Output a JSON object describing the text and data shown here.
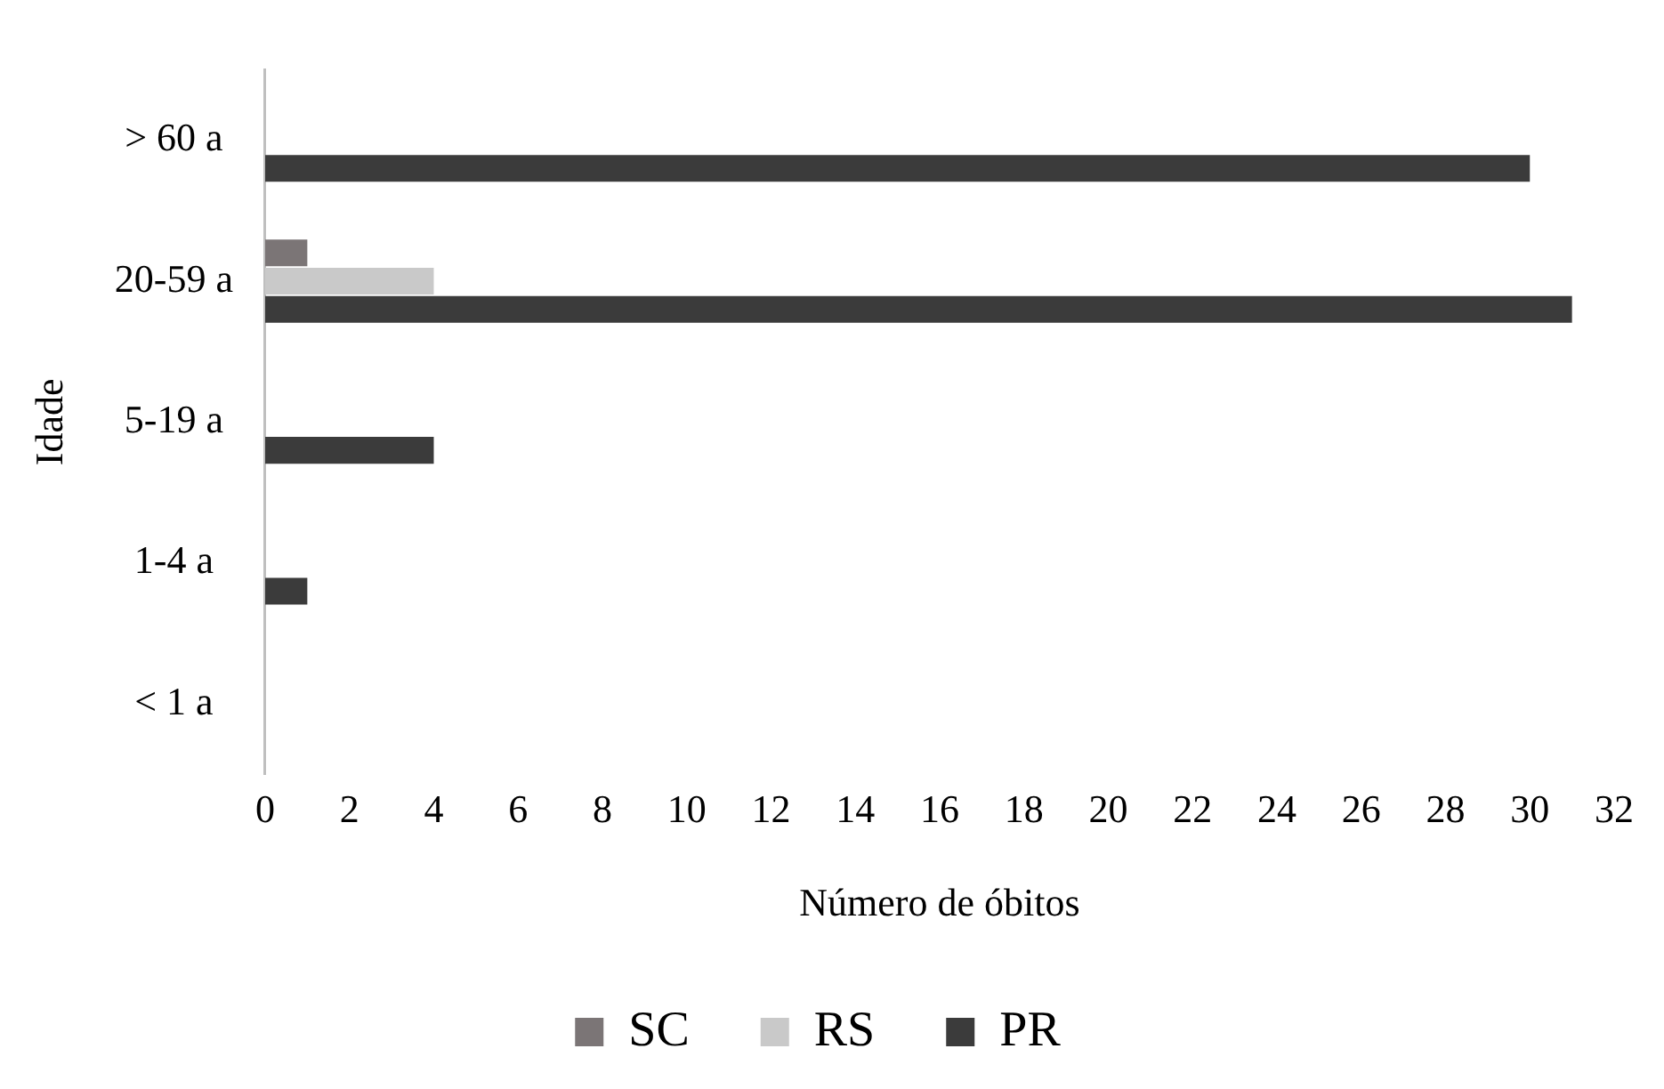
{
  "chart_data": {
    "type": "bar",
    "orientation": "horizontal",
    "xlabel": "Número de óbitos",
    "ylabel": "Idade",
    "categories": [
      "> 60 a",
      "20-59 a",
      "5-19 a",
      "1-4 a",
      "< 1 a"
    ],
    "series": [
      {
        "name": "SC",
        "color": "#7b7576",
        "values": [
          null,
          1,
          null,
          null,
          null
        ]
      },
      {
        "name": "RS",
        "color": "#c9c9c9",
        "values": [
          null,
          4,
          null,
          null,
          null
        ]
      },
      {
        "name": "PR",
        "color": "#3b3b3b",
        "values": [
          30,
          31,
          4,
          1,
          null
        ]
      }
    ],
    "xlim": [
      0,
      32
    ],
    "xticks": [
      0,
      2,
      4,
      6,
      8,
      10,
      12,
      14,
      16,
      18,
      20,
      22,
      24,
      26,
      28,
      30,
      32
    ],
    "grid": false,
    "legend": "bottom"
  }
}
